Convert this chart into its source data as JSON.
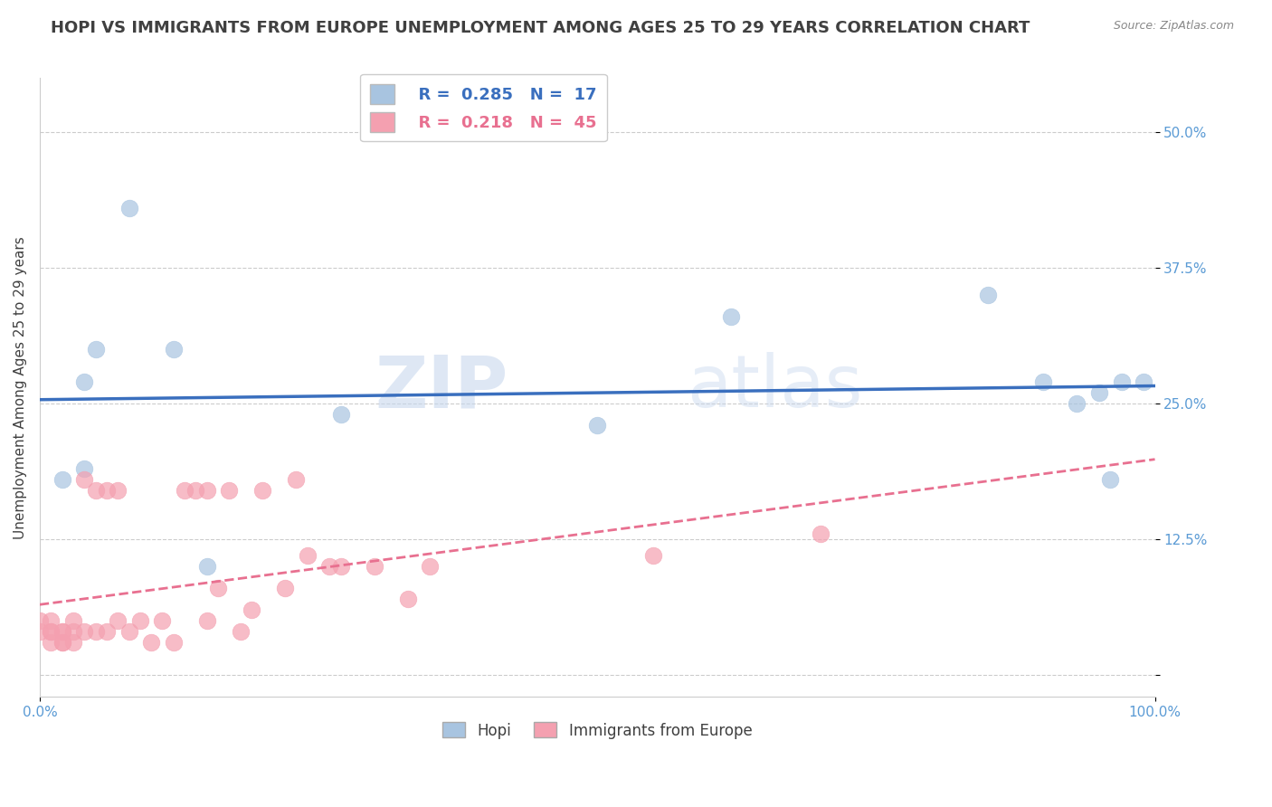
{
  "title": "HOPI VS IMMIGRANTS FROM EUROPE UNEMPLOYMENT AMONG AGES 25 TO 29 YEARS CORRELATION CHART",
  "source_text": "Source: ZipAtlas.com",
  "xlabel": "",
  "ylabel": "Unemployment Among Ages 25 to 29 years",
  "xlim": [
    0,
    100.0
  ],
  "ylim": [
    -2,
    55
  ],
  "xticks": [
    0.0,
    100.0
  ],
  "xticklabels": [
    "0.0%",
    "100.0%"
  ],
  "ytick_positions": [
    0.0,
    12.5,
    25.0,
    37.5,
    50.0
  ],
  "ytick_labels": [
    "",
    "12.5%",
    "25.0%",
    "37.5%",
    "50.0%"
  ],
  "hopi_R": 0.285,
  "hopi_N": 17,
  "immigrants_R": 0.218,
  "immigrants_N": 45,
  "hopi_color": "#a8c4e0",
  "immigrants_color": "#f4a0b0",
  "hopi_line_color": "#3a6fbe",
  "immigrants_line_color": "#e87090",
  "legend_label_hopi": "Hopi",
  "legend_label_immigrants": "Immigrants from Europe",
  "watermark_zip": "ZIP",
  "watermark_atlas": "atlas",
  "hopi_x": [
    2,
    4,
    4,
    5,
    8,
    12,
    15,
    27,
    50,
    62,
    85,
    90,
    93,
    95,
    96,
    97,
    99
  ],
  "hopi_y": [
    18,
    27,
    19,
    30,
    43,
    30,
    10,
    24,
    23,
    33,
    35,
    27,
    25,
    26,
    18,
    27,
    27
  ],
  "immigrants_x": [
    0,
    0,
    1,
    1,
    1,
    1,
    2,
    2,
    2,
    2,
    3,
    3,
    3,
    4,
    4,
    5,
    5,
    6,
    6,
    7,
    7,
    8,
    9,
    10,
    11,
    12,
    13,
    14,
    15,
    15,
    16,
    17,
    18,
    19,
    20,
    22,
    23,
    24,
    26,
    27,
    30,
    33,
    35,
    55,
    70
  ],
  "immigrants_y": [
    5,
    4,
    3,
    4,
    5,
    4,
    3,
    4,
    3,
    4,
    3,
    5,
    4,
    4,
    18,
    4,
    17,
    4,
    17,
    17,
    5,
    4,
    5,
    3,
    5,
    3,
    17,
    17,
    17,
    5,
    8,
    17,
    4,
    6,
    17,
    8,
    18,
    11,
    10,
    10,
    10,
    7,
    10,
    11,
    13
  ],
  "background_color": "#ffffff",
  "grid_color": "#cccccc",
  "title_fontsize": 13,
  "axis_label_fontsize": 11,
  "tick_fontsize": 11,
  "tick_color": "#5b9bd5",
  "title_color": "#404040"
}
